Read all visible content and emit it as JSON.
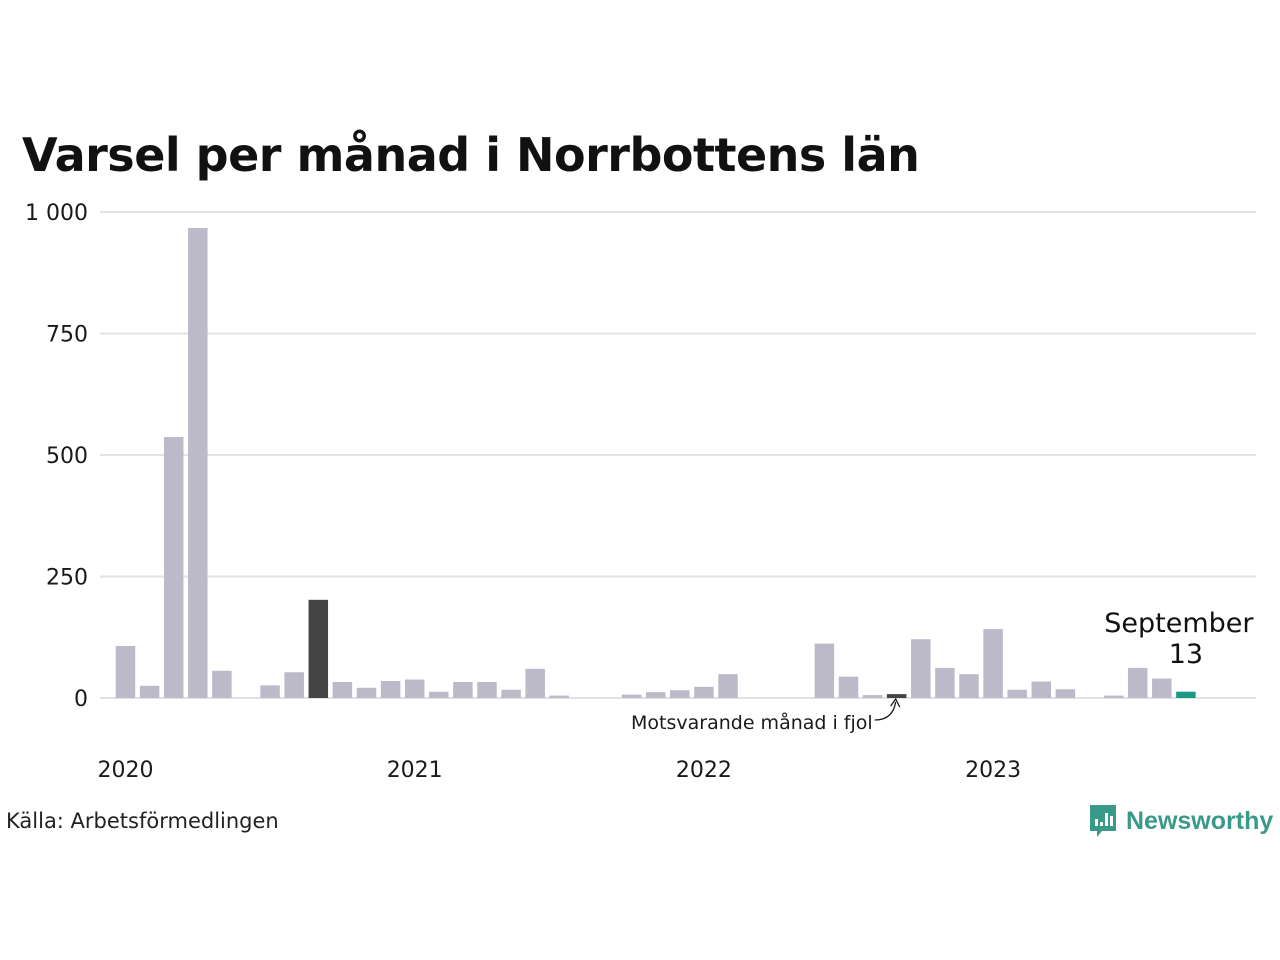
{
  "chart_data": {
    "type": "bar",
    "title": "Varsel per månad i Norrbottens län",
    "ylim": [
      0,
      1000
    ],
    "y_ticks": [
      {
        "value": 0,
        "label": "0"
      },
      {
        "value": 250,
        "label": "250"
      },
      {
        "value": 500,
        "label": "500"
      },
      {
        "value": 750,
        "label": "750"
      },
      {
        "value": 1000,
        "label": "1 000"
      }
    ],
    "x_ticks": [
      {
        "x": "2020-01",
        "label": "2020"
      },
      {
        "x": "2021-01",
        "label": "2021"
      },
      {
        "x": "2022-01",
        "label": "2022"
      },
      {
        "x": "2023-01",
        "label": "2023"
      }
    ],
    "categories": [
      "2020-01",
      "2020-02",
      "2020-03",
      "2020-04",
      "2020-05",
      "2020-06",
      "2020-07",
      "2020-08",
      "2020-09",
      "2020-10",
      "2020-11",
      "2020-12",
      "2021-01",
      "2021-02",
      "2021-03",
      "2021-04",
      "2021-05",
      "2021-06",
      "2021-07",
      "2021-08",
      "2021-09",
      "2021-10",
      "2021-11",
      "2021-12",
      "2022-01",
      "2022-02",
      "2022-03",
      "2022-04",
      "2022-05",
      "2022-06",
      "2022-07",
      "2022-08",
      "2022-09",
      "2022-10",
      "2022-11",
      "2022-12",
      "2023-01",
      "2023-02",
      "2023-03",
      "2023-04",
      "2023-05",
      "2023-06",
      "2023-07",
      "2023-08",
      "2023-09"
    ],
    "values": [
      107,
      25,
      537,
      967,
      56,
      0,
      26,
      53,
      202,
      33,
      21,
      35,
      38,
      13,
      33,
      33,
      17,
      60,
      5,
      0,
      0,
      7,
      12,
      16,
      23,
      49,
      0,
      0,
      0,
      112,
      44,
      6,
      8,
      121,
      62,
      49,
      142,
      17,
      34,
      18,
      0,
      5,
      62,
      40,
      13
    ],
    "grid": true,
    "colors": {
      "bar": "#bcbac9",
      "same_month_last_year": "#444444",
      "current": "#1a9984",
      "grid": "#e2e2e2"
    },
    "highlights": [
      {
        "x": "2020-09",
        "role": "same_month_last_year"
      },
      {
        "x": "2022-09",
        "role": "same_month_last_year"
      },
      {
        "x": "2023-09",
        "role": "current"
      }
    ],
    "annotations": [
      {
        "x": "2022-09",
        "text": "Motsvarande månad i fjol"
      },
      {
        "x": "2023-09",
        "month": "September",
        "value": "13"
      }
    ],
    "source": "Källa: Arbetsförmedlingen"
  },
  "brand": {
    "name": "Newsworthy",
    "color": "#3a9a8a",
    "icon": "bar-chart-speech-bubble-icon"
  }
}
